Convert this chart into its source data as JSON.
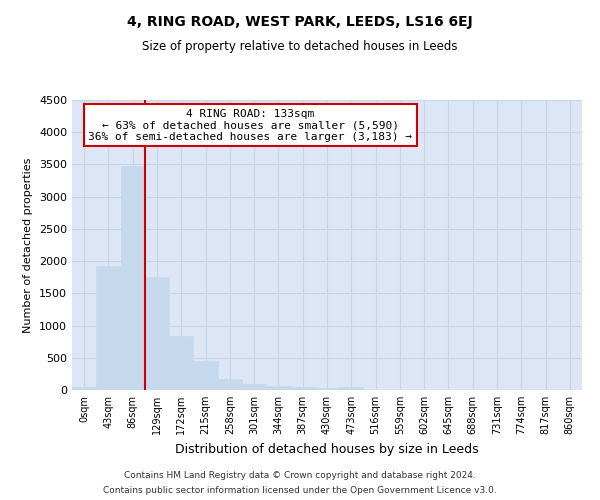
{
  "title": "4, RING ROAD, WEST PARK, LEEDS, LS16 6EJ",
  "subtitle": "Size of property relative to detached houses in Leeds",
  "xlabel": "Distribution of detached houses by size in Leeds",
  "ylabel": "Number of detached properties",
  "footer_line1": "Contains HM Land Registry data © Crown copyright and database right 2024.",
  "footer_line2": "Contains public sector information licensed under the Open Government Licence v3.0.",
  "bar_labels": [
    "0sqm",
    "43sqm",
    "86sqm",
    "129sqm",
    "172sqm",
    "215sqm",
    "258sqm",
    "301sqm",
    "344sqm",
    "387sqm",
    "430sqm",
    "473sqm",
    "516sqm",
    "559sqm",
    "602sqm",
    "645sqm",
    "688sqm",
    "731sqm",
    "774sqm",
    "817sqm",
    "860sqm"
  ],
  "bar_values": [
    50,
    1920,
    3480,
    1760,
    840,
    450,
    170,
    100,
    60,
    40,
    30,
    50,
    0,
    0,
    0,
    0,
    0,
    0,
    0,
    0,
    0
  ],
  "bar_color": "#c6d9ec",
  "bar_edge_color": "#c6d9ec",
  "grid_color": "#c8d4e8",
  "bg_color": "#dce6f4",
  "vline_color": "#cc0000",
  "annotation_text": "4 RING ROAD: 133sqm\n← 63% of detached houses are smaller (5,590)\n36% of semi-detached houses are larger (3,183) →",
  "annotation_box_color": "#ffffff",
  "annotation_box_edge": "#cc0000",
  "ylim": [
    0,
    4500
  ],
  "yticks": [
    0,
    500,
    1000,
    1500,
    2000,
    2500,
    3000,
    3500,
    4000,
    4500
  ]
}
